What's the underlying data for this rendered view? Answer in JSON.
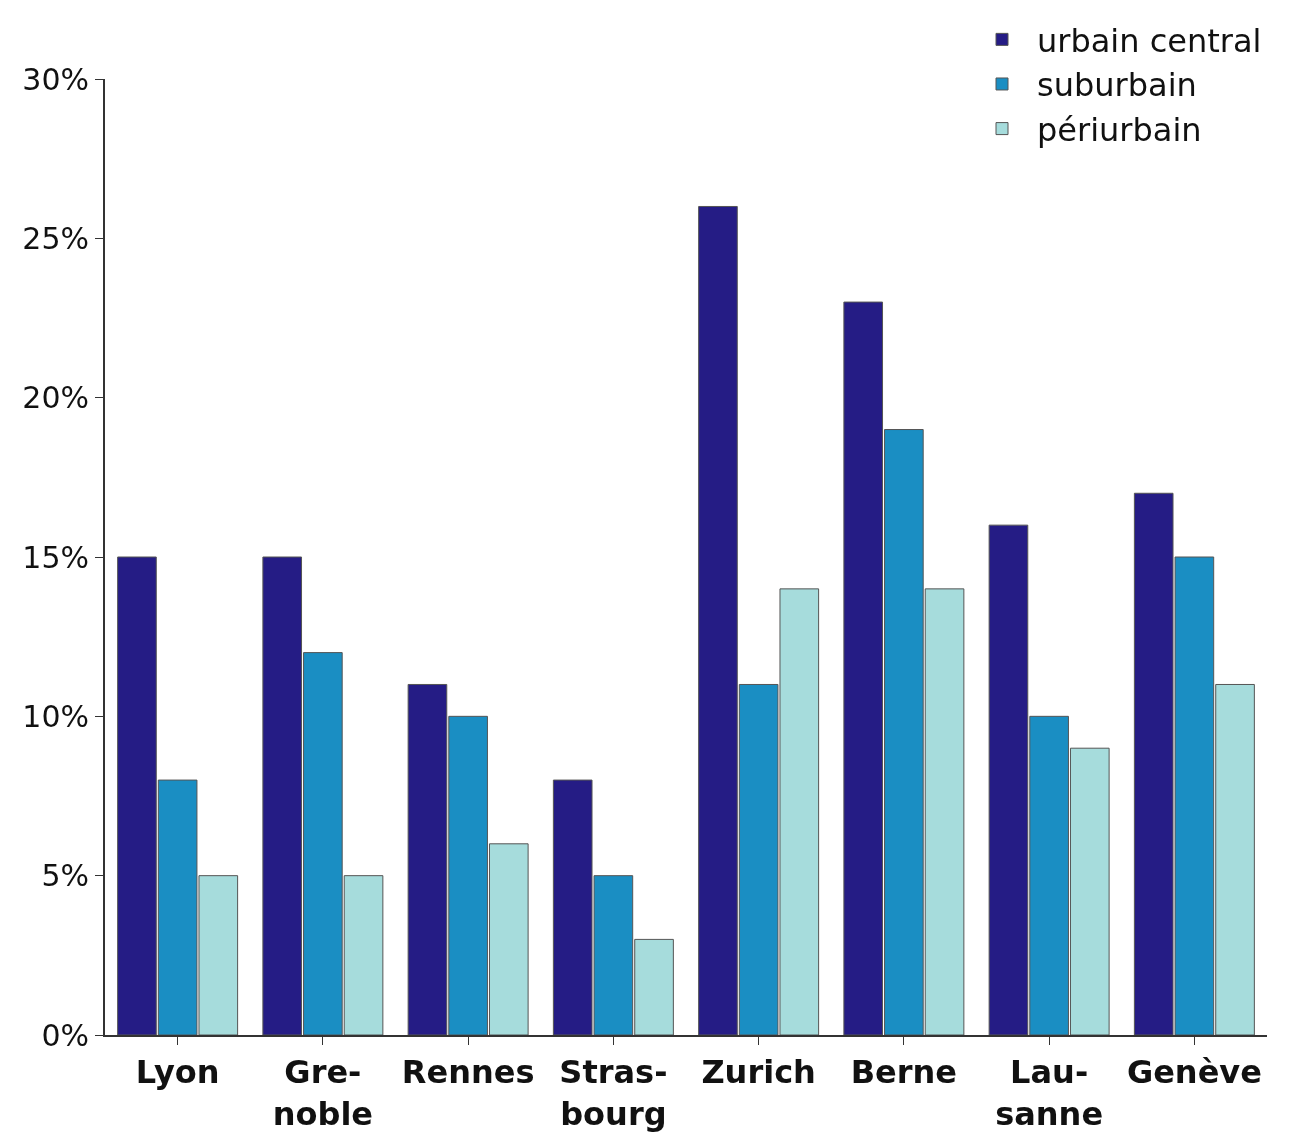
{
  "chart_data": {
    "type": "bar",
    "categories": [
      "Lyon",
      "Gre-\nnoble",
      "Rennes",
      "Stras-\nbourg",
      "Zurich",
      "Berne",
      "Lau-\nsanne",
      "Genève"
    ],
    "series": [
      {
        "name": "urbain central",
        "color": "#251c85",
        "values": [
          15,
          15,
          11,
          8,
          26,
          23,
          16,
          17
        ]
      },
      {
        "name": "suburbain",
        "color": "#1a8ec3",
        "values": [
          8,
          12,
          10,
          5,
          11,
          19,
          10,
          15
        ]
      },
      {
        "name": "périurbain",
        "color": "#a6dcdc",
        "values": [
          5,
          5,
          6,
          3,
          14,
          14,
          9,
          11
        ]
      }
    ],
    "ylim": [
      0,
      30
    ],
    "yticks": [
      {
        "value": 0,
        "label": "0%"
      },
      {
        "value": 5,
        "label": "5%"
      },
      {
        "value": 10,
        "label": "10%"
      },
      {
        "value": 15,
        "label": "15%"
      },
      {
        "value": 20,
        "label": "20%"
      },
      {
        "value": 25,
        "label": "25%"
      },
      {
        "value": 30,
        "label": "30%"
      }
    ],
    "grid": false,
    "legend": "top right"
  }
}
